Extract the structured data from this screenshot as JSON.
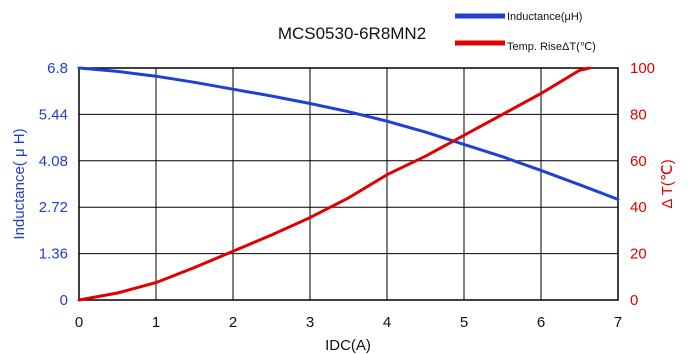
{
  "chart_data": {
    "type": "line",
    "title": "MCS0530-6R8MN2",
    "xlabel": "IDC(A)",
    "ylabel_left": "Inductance( μ H)",
    "ylabel_right": "Δ T(℃)",
    "xlim": [
      0,
      7
    ],
    "ylim_left": [
      0,
      6.8
    ],
    "ylim_right": [
      0,
      100
    ],
    "x_ticks": [
      "0",
      "1",
      "2",
      "3",
      "4",
      "5",
      "6",
      "7"
    ],
    "y_ticks_left": [
      "0",
      "1.36",
      "2.72",
      "4.08",
      "5.44",
      "6.8"
    ],
    "y_ticks_right": [
      "0",
      "20",
      "40",
      "60",
      "80",
      "100"
    ],
    "grid": true,
    "legend_position": "top-right",
    "series": [
      {
        "name": "Inductance(μH)",
        "axis": "left",
        "color": "#1f3fd6",
        "x": [
          0,
          0.5,
          1,
          1.5,
          2,
          2.5,
          3,
          3.5,
          4,
          4.5,
          5,
          5.5,
          6,
          6.5,
          7
        ],
        "y": [
          6.8,
          6.7,
          6.56,
          6.38,
          6.18,
          5.98,
          5.76,
          5.52,
          5.24,
          4.92,
          4.56,
          4.2,
          3.8,
          3.38,
          2.95
        ]
      },
      {
        "name": "Temp. RiseΔT(℃)",
        "axis": "right",
        "color": "#e00000",
        "x": [
          0,
          0.5,
          1,
          1.5,
          2,
          2.5,
          3,
          3.5,
          4,
          4.5,
          5,
          5.5,
          6,
          6.5,
          6.63
        ],
        "y": [
          0,
          3,
          7.5,
          14,
          21,
          28,
          35.5,
          44,
          54,
          62,
          71,
          80,
          89,
          99,
          100
        ]
      }
    ]
  }
}
